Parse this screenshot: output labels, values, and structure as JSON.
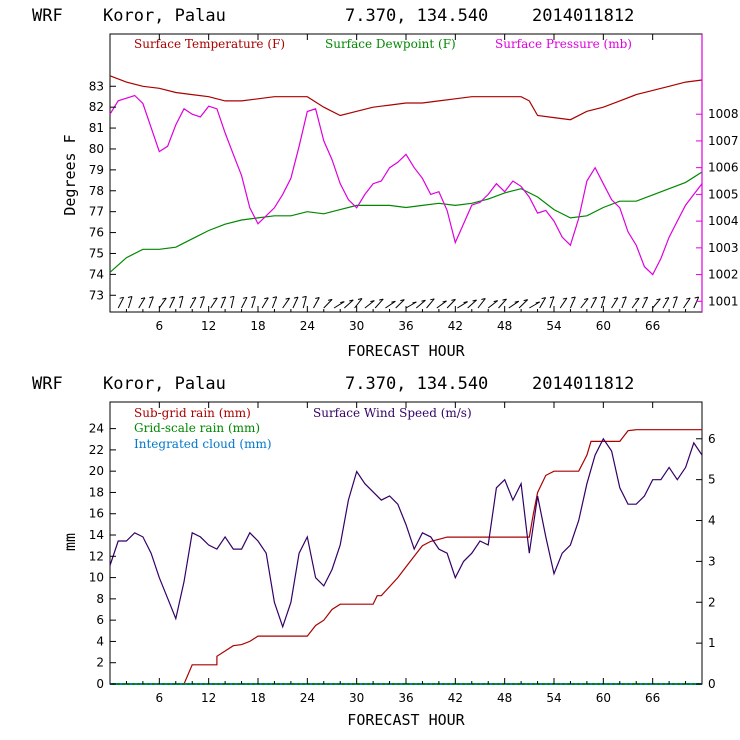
{
  "chart_data": [
    {
      "type": "line",
      "header": {
        "model": "WRF",
        "location": "Koror, Palau",
        "coords": "7.370, 134.540",
        "init": "2014011812"
      },
      "xlabel": "FORECAST HOUR",
      "ylabel": "Degrees F",
      "xlim": [
        0,
        72
      ],
      "ylim": [
        72.2,
        85.5
      ],
      "y2lim": [
        1000.6,
        1011.0
      ],
      "xticks": [
        "6",
        "12",
        "18",
        "24",
        "30",
        "36",
        "42",
        "48",
        "54",
        "60",
        "66"
      ],
      "yticks": [
        "73",
        "74",
        "75",
        "76",
        "77",
        "78",
        "79",
        "80",
        "81",
        "82",
        "83"
      ],
      "y2ticks": [
        "1001",
        "1002",
        "1003",
        "1004",
        "1005",
        "1006",
        "1007",
        "1008"
      ],
      "wind_barbs": "wind barbs along bottom axis",
      "series": [
        {
          "name": "Surface Temperature (F)",
          "axis": "left",
          "color": "#aa0000",
          "x": [
            0,
            2,
            4,
            6,
            8,
            10,
            12,
            14,
            16,
            18,
            20,
            22,
            24,
            26,
            28,
            30,
            32,
            34,
            36,
            38,
            40,
            42,
            44,
            46,
            48,
            50,
            51,
            52,
            54,
            56,
            58,
            60,
            62,
            64,
            66,
            68,
            70,
            72
          ],
          "y": [
            83.5,
            83.2,
            83.0,
            82.9,
            82.7,
            82.6,
            82.5,
            82.3,
            82.3,
            82.4,
            82.5,
            82.5,
            82.5,
            82.0,
            81.6,
            81.8,
            82.0,
            82.1,
            82.2,
            82.2,
            82.3,
            82.4,
            82.5,
            82.5,
            82.5,
            82.5,
            82.3,
            81.6,
            81.5,
            81.4,
            81.8,
            82.0,
            82.3,
            82.6,
            82.8,
            83.0,
            83.2,
            83.3
          ]
        },
        {
          "name": "Surface Dewpoint (F)",
          "axis": "left",
          "color": "#008800",
          "x": [
            0,
            2,
            4,
            6,
            8,
            10,
            12,
            14,
            16,
            18,
            20,
            22,
            24,
            26,
            28,
            30,
            32,
            34,
            36,
            38,
            40,
            42,
            44,
            46,
            48,
            50,
            52,
            54,
            56,
            58,
            60,
            62,
            64,
            66,
            68,
            70,
            72
          ],
          "y": [
            74.1,
            74.8,
            75.2,
            75.2,
            75.3,
            75.7,
            76.1,
            76.4,
            76.6,
            76.7,
            76.8,
            76.8,
            77.0,
            76.9,
            77.1,
            77.3,
            77.3,
            77.3,
            77.2,
            77.3,
            77.4,
            77.3,
            77.4,
            77.6,
            77.9,
            78.1,
            77.7,
            77.1,
            76.7,
            76.8,
            77.2,
            77.5,
            77.5,
            77.8,
            78.1,
            78.4,
            78.9
          ]
        },
        {
          "name": "Surface Pressure (mb)",
          "axis": "right",
          "color": "#dd00dd",
          "x": [
            0,
            1,
            2,
            3,
            4,
            5,
            6,
            7,
            8,
            9,
            10,
            11,
            12,
            13,
            14,
            15,
            16,
            17,
            18,
            19,
            20,
            21,
            22,
            23,
            24,
            25,
            26,
            27,
            28,
            29,
            30,
            31,
            32,
            33,
            34,
            35,
            36,
            37,
            38,
            39,
            40,
            41,
            42,
            43,
            44,
            45,
            46,
            47,
            48,
            49,
            50,
            51,
            52,
            53,
            54,
            55,
            56,
            57,
            58,
            59,
            60,
            61,
            62,
            63,
            64,
            65,
            66,
            67,
            68,
            69,
            70,
            71,
            72
          ],
          "y": [
            1008.0,
            1008.5,
            1008.6,
            1008.7,
            1008.4,
            1007.5,
            1006.6,
            1006.8,
            1007.6,
            1008.2,
            1008.0,
            1007.9,
            1008.3,
            1008.2,
            1007.3,
            1006.5,
            1005.7,
            1004.5,
            1003.9,
            1004.2,
            1004.5,
            1005.0,
            1005.6,
            1006.8,
            1008.1,
            1008.2,
            1007.0,
            1006.3,
            1005.4,
            1004.8,
            1004.5,
            1005.0,
            1005.4,
            1005.5,
            1006.0,
            1006.2,
            1006.5,
            1006.0,
            1005.6,
            1005.0,
            1005.1,
            1004.4,
            1003.2,
            1003.9,
            1004.6,
            1004.7,
            1005.0,
            1005.4,
            1005.1,
            1005.5,
            1005.3,
            1004.9,
            1004.3,
            1004.4,
            1004.0,
            1003.4,
            1003.1,
            1004.1,
            1005.5,
            1006.0,
            1005.4,
            1004.8,
            1004.5,
            1003.6,
            1003.1,
            1002.3,
            1002.0,
            1002.6,
            1003.4,
            1004.0,
            1004.6,
            1005.0,
            1005.4
          ]
        }
      ]
    },
    {
      "type": "line",
      "header": {
        "model": "WRF",
        "location": "Koror, Palau",
        "coords": "7.370, 134.540",
        "init": "2014011812"
      },
      "xlabel": "FORECAST HOUR",
      "ylabel": "mm",
      "xlim": [
        0,
        72
      ],
      "ylim": [
        0,
        26.5
      ],
      "y2lim": [
        0,
        6.9
      ],
      "xticks": [
        "6",
        "12",
        "18",
        "24",
        "30",
        "36",
        "42",
        "48",
        "54",
        "60",
        "66"
      ],
      "yticks": [
        "0",
        "2",
        "4",
        "6",
        "8",
        "10",
        "12",
        "14",
        "16",
        "18",
        "20",
        "22",
        "24"
      ],
      "y2ticks": [
        "0",
        "1",
        "2",
        "3",
        "4",
        "5",
        "6"
      ],
      "series": [
        {
          "name": "Sub-grid rain (mm)",
          "axis": "left",
          "color": "#aa0000",
          "x": [
            0,
            9,
            10,
            13,
            13,
            15,
            16,
            17,
            18,
            24,
            25,
            26,
            27,
            28,
            32,
            32.5,
            33,
            35,
            36,
            37,
            38,
            39,
            40,
            41,
            42,
            43,
            44,
            51,
            51.5,
            52,
            53,
            54,
            55,
            56,
            57,
            58,
            58.5,
            59,
            60,
            61,
            62,
            63,
            64,
            72
          ],
          "y": [
            0,
            0,
            1.8,
            1.8,
            2.6,
            3.6,
            3.7,
            4.0,
            4.5,
            4.5,
            5.5,
            6.0,
            7.0,
            7.5,
            7.5,
            8.3,
            8.3,
            10.0,
            11.0,
            12.0,
            13.0,
            13.4,
            13.6,
            13.8,
            13.8,
            13.8,
            13.8,
            13.8,
            16.0,
            18.0,
            19.6,
            20.0,
            20.0,
            20.0,
            20.0,
            21.5,
            22.8,
            22.8,
            22.8,
            22.8,
            22.8,
            23.8,
            23.9,
            23.9
          ]
        },
        {
          "name": "Grid-scale rain (mm)",
          "axis": "left",
          "color": "#008800",
          "x": [
            0,
            72
          ],
          "y": [
            0,
            0
          ]
        },
        {
          "name": "Integrated cloud (mm)",
          "axis": "left",
          "color": "#0077cc",
          "x": [
            0,
            72
          ],
          "y": [
            0,
            0
          ]
        },
        {
          "name": "Surface Wind Speed (m/s)",
          "axis": "right",
          "color": "#330066",
          "x": [
            0,
            1,
            2,
            3,
            4,
            5,
            6,
            7,
            8,
            9,
            10,
            11,
            12,
            13,
            14,
            15,
            16,
            17,
            18,
            19,
            20,
            21,
            22,
            23,
            24,
            25,
            26,
            27,
            28,
            29,
            30,
            31,
            32,
            33,
            34,
            35,
            36,
            37,
            38,
            39,
            40,
            41,
            42,
            43,
            44,
            45,
            46,
            47,
            48,
            49,
            50,
            51,
            52,
            53,
            54,
            55,
            56,
            57,
            58,
            59,
            60,
            61,
            62,
            63,
            64,
            65,
            66,
            67,
            68,
            69,
            70,
            71,
            72
          ],
          "y": [
            2.9,
            3.5,
            3.5,
            3.7,
            3.6,
            3.2,
            2.6,
            2.1,
            1.6,
            2.5,
            3.7,
            3.6,
            3.4,
            3.3,
            3.6,
            3.3,
            3.3,
            3.7,
            3.5,
            3.2,
            2.0,
            1.4,
            2.0,
            3.2,
            3.6,
            2.6,
            2.4,
            2.8,
            3.4,
            4.5,
            5.2,
            4.9,
            4.7,
            4.5,
            4.6,
            4.4,
            3.9,
            3.3,
            3.7,
            3.6,
            3.3,
            3.2,
            2.6,
            3.0,
            3.2,
            3.5,
            3.4,
            4.8,
            5.0,
            4.5,
            4.9,
            3.2,
            4.6,
            3.6,
            2.7,
            3.2,
            3.4,
            4.0,
            4.9,
            5.6,
            6.0,
            5.7,
            4.8,
            4.4,
            4.4,
            4.6,
            5.0,
            5.0,
            5.3,
            5.0,
            5.3,
            5.9,
            5.6
          ]
        }
      ]
    }
  ]
}
